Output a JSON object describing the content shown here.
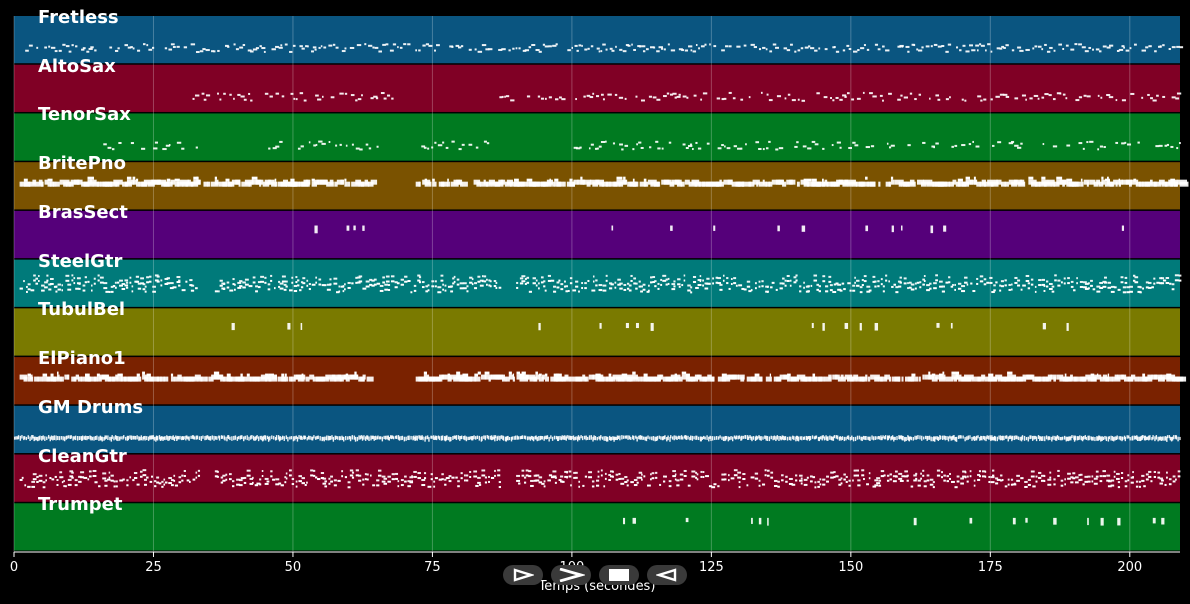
{
  "chart_data": {
    "type": "piano-roll",
    "xlabel": "Temps (secondes)",
    "xlim": [
      0,
      209
    ],
    "x_ticks": [
      0,
      25,
      50,
      75,
      100,
      125,
      150,
      175,
      200
    ],
    "tracks": [
      {
        "name": "Fretless",
        "color": "#0a5580",
        "density": 0.8,
        "mode": "stipple",
        "segments": [
          [
            1,
            209
          ]
        ]
      },
      {
        "name": "AltoSax",
        "color": "#800025",
        "density": 0.6,
        "mode": "stipple",
        "segments": [
          [
            32,
            68
          ],
          [
            87,
            209
          ]
        ]
      },
      {
        "name": "TenorSax",
        "color": "#007a20",
        "density": 0.55,
        "mode": "stipple",
        "segments": [
          [
            16,
            33
          ],
          [
            45,
            65
          ],
          [
            73,
            87
          ],
          [
            100,
            209
          ]
        ]
      },
      {
        "name": "BritePno",
        "color": "#7a5200",
        "density": 0.95,
        "mode": "block",
        "segments": [
          [
            1,
            64
          ],
          [
            72,
            209
          ]
        ]
      },
      {
        "name": "BrasSect",
        "color": "#55007a",
        "density": 0.25,
        "mode": "sparse",
        "segments": [
          [
            52,
            64
          ],
          [
            106,
            135
          ],
          [
            135,
            209
          ]
        ]
      },
      {
        "name": "SteelGtr",
        "color": "#007a7a",
        "density": 0.75,
        "mode": "chord",
        "segments": [
          [
            1,
            33
          ],
          [
            36,
            87
          ],
          [
            90,
            209
          ]
        ]
      },
      {
        "name": "TubulBel",
        "color": "#7a7a00",
        "density": 0.45,
        "mode": "sparse",
        "segments": [
          [
            39,
            41
          ],
          [
            49,
            62
          ],
          [
            94,
            96
          ],
          [
            103,
            118
          ],
          [
            143,
            200
          ]
        ]
      },
      {
        "name": "ElPiano1",
        "color": "#7a2200",
        "density": 0.95,
        "mode": "block",
        "segments": [
          [
            1,
            64
          ],
          [
            72,
            209
          ]
        ]
      },
      {
        "name": "GM Drums",
        "color": "#0a5580",
        "density": 1.0,
        "mode": "drums",
        "segments": [
          [
            0,
            209
          ]
        ]
      },
      {
        "name": "CleanGtr",
        "color": "#800025",
        "density": 0.75,
        "mode": "chord",
        "segments": [
          [
            1,
            33
          ],
          [
            36,
            87
          ],
          [
            90,
            209
          ]
        ]
      },
      {
        "name": "Trumpet",
        "color": "#007a20",
        "density": 0.25,
        "mode": "sparse",
        "segments": [
          [
            52,
            64
          ],
          [
            106,
            135
          ],
          [
            135,
            209
          ]
        ]
      }
    ]
  },
  "controls": [
    {
      "name": "play-button",
      "icon": "play-icon"
    },
    {
      "name": "forward-button",
      "icon": "forward-icon"
    },
    {
      "name": "stop-button",
      "icon": "stop-icon"
    },
    {
      "name": "rewind-button",
      "icon": "rewind-icon"
    }
  ]
}
